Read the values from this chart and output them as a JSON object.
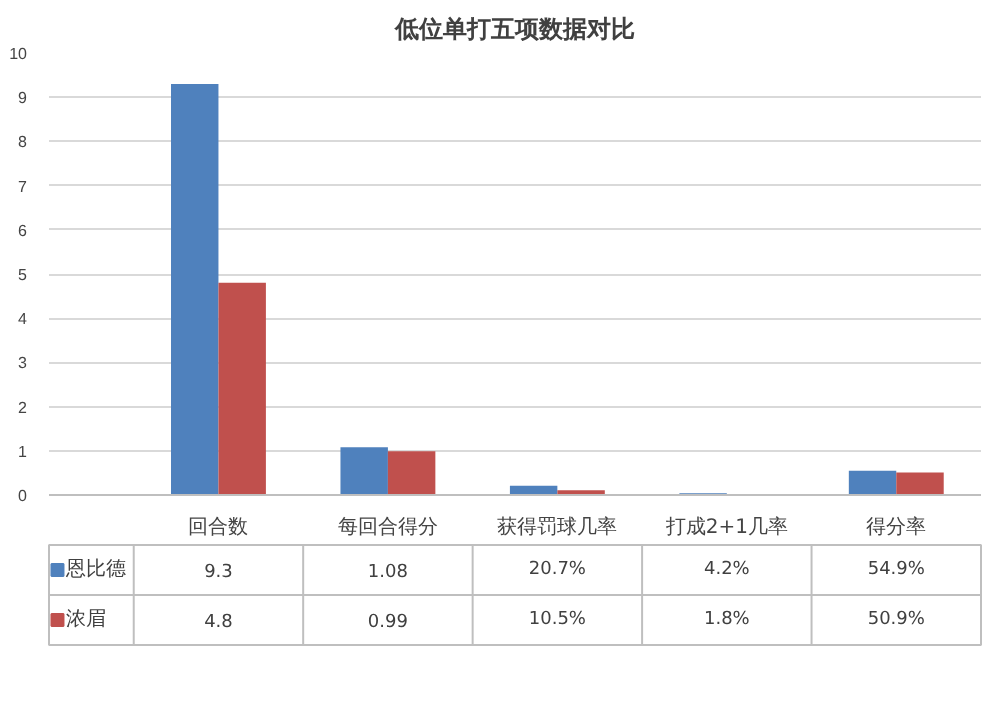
{
  "chart_data": {
    "type": "bar",
    "title": "低位单打五项数据对比",
    "categories": [
      "回合数",
      "每回合得分",
      "获得罚球几率",
      "打成2+1几率",
      "得分率"
    ],
    "series": [
      {
        "name": "恩比德",
        "color": "#4f81bd",
        "values": [
          9.3,
          1.08,
          0.207,
          0.042,
          0.549
        ],
        "value_labels": [
          "9.3",
          "1.08",
          "20.7%",
          "4.2%",
          "54.9%"
        ]
      },
      {
        "name": "浓眉",
        "color": "#c0504d",
        "values": [
          4.8,
          0.99,
          0.105,
          0.018,
          0.509
        ],
        "value_labels": [
          "4.8",
          "0.99",
          "10.5%",
          "1.8%",
          "50.9%"
        ]
      }
    ],
    "legend": "bottom left",
    "ylim": [
      0,
      10
    ],
    "yticks": [
      0,
      1,
      2,
      3,
      4,
      5,
      6,
      7,
      8,
      9,
      10
    ],
    "grid": "y"
  }
}
